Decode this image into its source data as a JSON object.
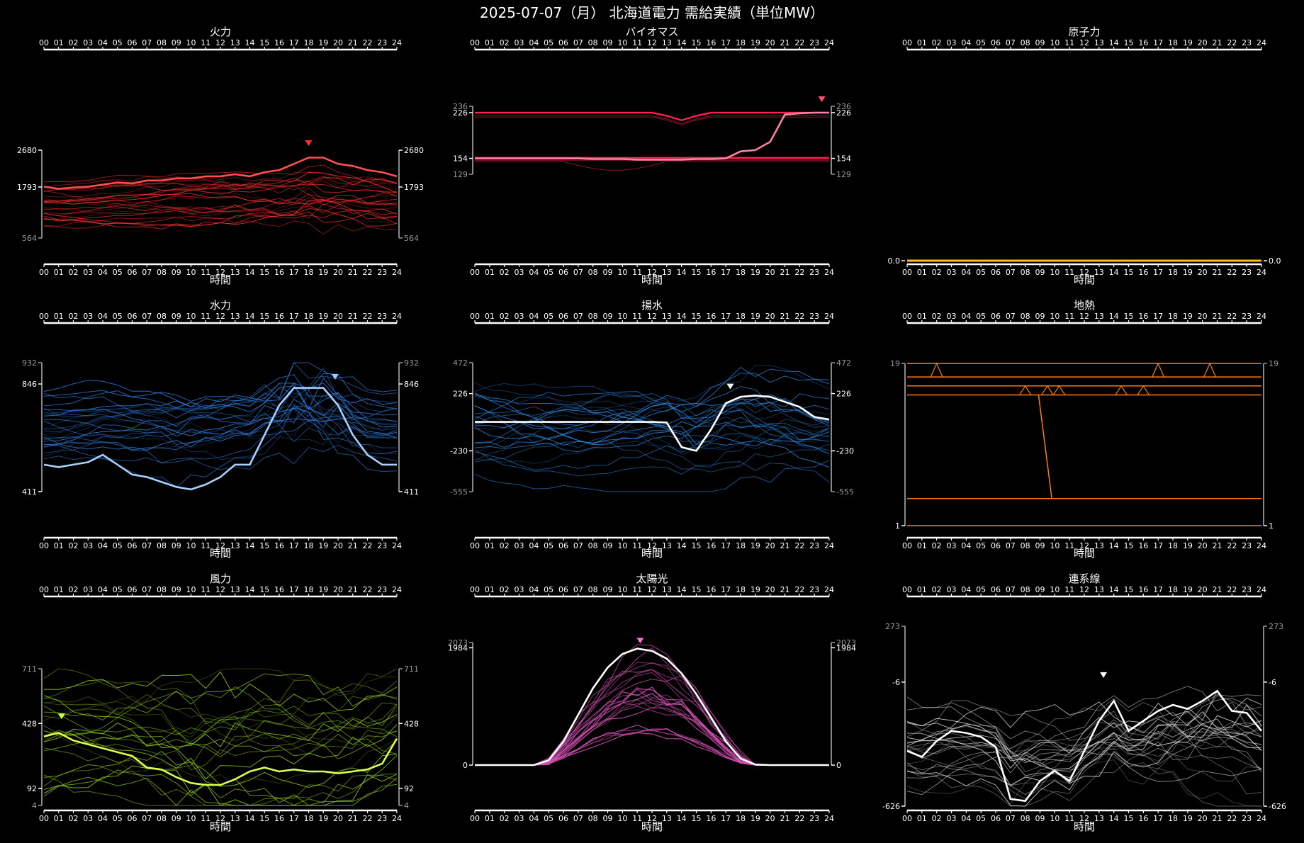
{
  "title": "2025-07-07（月） 北海道電力 需給実績（単位MW）",
  "hour_labels": [
    "00",
    "01",
    "02",
    "03",
    "04",
    "05",
    "06",
    "07",
    "08",
    "09",
    "10",
    "11",
    "12",
    "13",
    "14",
    "15",
    "16",
    "17",
    "18",
    "19",
    "20",
    "21",
    "22",
    "23",
    "24"
  ],
  "xlabel": "時間",
  "chart_data": [
    {
      "type": "line",
      "title": "火力",
      "color": "#ff3030",
      "marker_color": "#ff3030",
      "highlight_color": "#ff5050",
      "ylim": [
        564,
        2680
      ],
      "ticks": [
        {
          "v": 2680,
          "bold": true
        },
        {
          "v": 1793,
          "bold": true
        },
        {
          "v": 564,
          "bold": false
        }
      ],
      "peak": {
        "x": 18,
        "y": 2680
      },
      "highlight": [
        1800,
        1750,
        1780,
        1800,
        1850,
        1900,
        1880,
        1950,
        1950,
        2000,
        2000,
        2050,
        2050,
        2100,
        2050,
        2150,
        2200,
        2350,
        2500,
        2500,
        2350,
        2300,
        2200,
        2150,
        2050
      ],
      "bands": {
        "lo": 900,
        "hi": 1900,
        "amp": 250
      }
    },
    {
      "type": "line",
      "title": "バイオマス",
      "color": "#ff2050",
      "marker_color": "#ff5070",
      "highlight_color": "#ff80a0",
      "ylim": [
        129,
        236
      ],
      "ticks": [
        {
          "v": 236,
          "bold": false
        },
        {
          "v": 226,
          "bold": true
        },
        {
          "v": 154,
          "bold": true
        },
        {
          "v": 129,
          "bold": false
        }
      ],
      "peak": {
        "x": 23.5,
        "y": 236
      },
      "highlight": [
        154,
        154,
        154,
        154,
        154,
        154,
        154,
        154,
        153,
        153,
        153,
        152,
        152,
        152,
        152,
        153,
        153,
        154,
        165,
        167,
        180,
        223,
        225,
        226,
        226
      ]
    },
    {
      "type": "line",
      "title": "原子力",
      "color": "#ffbb20",
      "ylim": [
        0,
        1
      ],
      "ticks": [
        {
          "v": 0.0,
          "bold": true,
          "label": "0.0"
        }
      ],
      "flat": 0.0
    },
    {
      "type": "line",
      "title": "水力",
      "color": "#2f7ee0",
      "marker_color": "#a0c8ff",
      "highlight_color": "#a8d0ff",
      "ylim": [
        411,
        932
      ],
      "ticks": [
        {
          "v": 932,
          "bold": false
        },
        {
          "v": 846,
          "bold": true
        },
        {
          "v": 411,
          "bold": true
        }
      ],
      "peak": {
        "x": 19.8,
        "y": 846
      },
      "highlight": [
        520,
        510,
        520,
        530,
        560,
        520,
        480,
        470,
        450,
        430,
        420,
        440,
        470,
        520,
        520,
        640,
        760,
        830,
        830,
        830,
        760,
        640,
        560,
        520,
        520
      ],
      "bands": {
        "lo": 560,
        "hi": 800,
        "amp": 90
      }
    },
    {
      "type": "line",
      "title": "揚水",
      "color": "#2a86e0",
      "marker_color": "#ffffff",
      "highlight_color": "#ffffff",
      "ylim": [
        -555,
        472
      ],
      "ticks": [
        {
          "v": 472,
          "bold": false
        },
        {
          "v": 226,
          "bold": true
        },
        {
          "v": -230,
          "bold": true
        },
        {
          "v": -555,
          "bold": false
        }
      ],
      "peak": {
        "x": 17.3,
        "y": 226
      },
      "highlight": [
        0,
        0,
        0,
        0,
        0,
        0,
        0,
        0,
        0,
        0,
        0,
        0,
        0,
        -5,
        -200,
        -230,
        -60,
        150,
        200,
        210,
        200,
        160,
        120,
        40,
        20
      ],
      "bands": {
        "lo": -350,
        "hi": 250,
        "amp": 250
      }
    },
    {
      "type": "line",
      "title": "地熱",
      "color": "#ff7a10",
      "ylim": [
        1,
        19
      ],
      "ticks": [
        {
          "v": 19,
          "bold": false
        },
        {
          "v": 1,
          "bold": true
        }
      ],
      "steps": [
        19,
        17.5,
        16.5,
        15.5,
        4,
        1
      ]
    },
    {
      "type": "line",
      "title": "風力",
      "color": "#99d81a",
      "marker_color": "#c8ff40",
      "highlight_color": "#d8ff50",
      "ylim": [
        4,
        711
      ],
      "ticks": [
        {
          "v": 711,
          "bold": false
        },
        {
          "v": 428,
          "bold": true
        },
        {
          "v": 92,
          "bold": true
        },
        {
          "v": 4,
          "bold": false
        }
      ],
      "peak": {
        "x": 1.2,
        "y": 428
      },
      "highlight": [
        360,
        380,
        340,
        320,
        300,
        280,
        260,
        200,
        190,
        150,
        120,
        110,
        110,
        140,
        180,
        200,
        180,
        190,
        180,
        180,
        170,
        180,
        190,
        220,
        350
      ],
      "bands": {
        "lo": 80,
        "hi": 600,
        "amp": 180
      }
    },
    {
      "type": "line",
      "title": "太陽光",
      "color": "#d050b0",
      "marker_color": "#ff70d0",
      "highlight_color": "#ffffff",
      "ylim": [
        0,
        2073
      ],
      "ticks": [
        {
          "v": 2073,
          "bold": false
        },
        {
          "v": 1984,
          "bold": true
        },
        {
          "v": 0,
          "bold": true
        }
      ],
      "peak": {
        "x": 11.2,
        "y": 1984
      },
      "highlight": [
        0,
        0,
        0,
        0,
        0,
        80,
        400,
        850,
        1300,
        1650,
        1880,
        1970,
        1930,
        1800,
        1550,
        1200,
        800,
        400,
        110,
        10,
        0,
        0,
        0,
        0,
        0
      ],
      "bell": {
        "rise": 4.3,
        "fall": 19.0,
        "center": 11.5
      }
    },
    {
      "type": "line",
      "title": "連系線",
      "color": "#d8d8d8",
      "marker_color": "#ffffff",
      "highlight_color": "#ffffff",
      "ylim": [
        -626,
        273
      ],
      "ticks": [
        {
          "v": 273,
          "bold": false
        },
        {
          "v": -6,
          "bold": true
        },
        {
          "v": -626,
          "bold": true
        }
      ],
      "peak": {
        "x": 13.3,
        "y": -6
      },
      "highlight": [
        -350,
        -380,
        -300,
        -250,
        -260,
        -280,
        -330,
        -590,
        -600,
        -500,
        -450,
        -500,
        -350,
        -200,
        -100,
        -250,
        -200,
        -150,
        -120,
        -140,
        -100,
        -50,
        -150,
        -160,
        -250
      ],
      "bands": {
        "lo": -500,
        "hi": -150,
        "amp": 180
      }
    }
  ]
}
